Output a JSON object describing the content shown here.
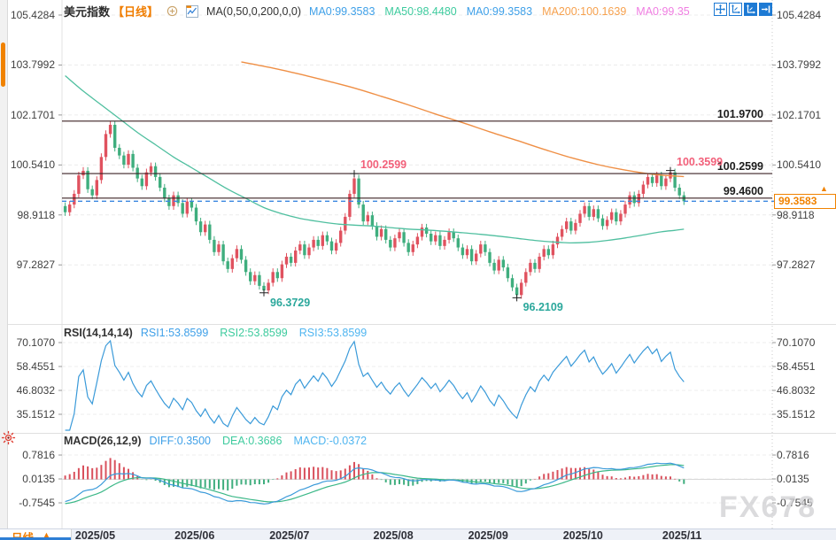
{
  "header": {
    "symbol": "美元指数",
    "period_tag": "【日线】",
    "ma_settings": "MA(0,50,0,200,0,0)",
    "ma_items": [
      {
        "label": "MA0:99.3583",
        "color": "#3fa0e8"
      },
      {
        "label": "MA50:98.4480",
        "color": "#3ecb9e"
      },
      {
        "label": "MA0:99.3583",
        "color": "#3fa0e8"
      },
      {
        "label": "MA200:100.1639",
        "color": "#f6a14e"
      },
      {
        "label": "MA0:99.35",
        "color": "#f07ee2"
      }
    ]
  },
  "toolbar": {
    "icons": [
      {
        "name": "pan-crosshair-icon",
        "active": false
      },
      {
        "name": "axis-scale-icon",
        "active": false
      },
      {
        "name": "axis-scale-active-icon",
        "active": true
      },
      {
        "name": "collapse-right-icon",
        "active": true
      }
    ]
  },
  "main_pane": {
    "ticks": [
      "105.4284",
      "103.7992",
      "102.1701",
      "100.5410",
      "98.9118",
      "97.2827"
    ],
    "levels": [
      {
        "label": "101.9700",
        "value": 101.97
      },
      {
        "label": "100.2599",
        "value": 100.2599
      },
      {
        "label": "99.4600",
        "value": 99.46
      }
    ],
    "price_marker": {
      "label": "99.3583",
      "value": 99.3583,
      "arrow": "▲"
    },
    "annotations": [
      {
        "text": "100.2599",
        "value": 100.2599,
        "index": 64,
        "placement": "above",
        "color": "#f2607a"
      },
      {
        "text": "100.3599",
        "value": 100.3599,
        "index": 134,
        "placement": "above",
        "color": "#f2607a"
      },
      {
        "text": "96.3729",
        "value": 96.3729,
        "index": 44,
        "placement": "below",
        "color": "#2aa79b"
      },
      {
        "text": "96.2109",
        "value": 96.2109,
        "index": 100,
        "placement": "below",
        "color": "#2aa79b"
      }
    ]
  },
  "rsi_pane": {
    "title": "RSI(14,14,14)",
    "items": [
      {
        "label": "RSI1:53.8599",
        "color": "#3fa0e8"
      },
      {
        "label": "RSI2:53.8599",
        "color": "#3ecb9e"
      },
      {
        "label": "RSI3:53.8599",
        "color": "#4fb5f0"
      }
    ],
    "ticks": [
      "70.1070",
      "58.4551",
      "46.8032",
      "35.1512"
    ]
  },
  "macd_pane": {
    "title": "MACD(26,12,9)",
    "items": [
      {
        "label": "DIFF:0.3500",
        "color": "#3fa0e8"
      },
      {
        "label": "DEA:0.3686",
        "color": "#3ecb9e"
      },
      {
        "label": "MACD:-0.0372",
        "color": "#4fb5f0"
      }
    ],
    "ticks": [
      "0.7816",
      "0.0135",
      "-0.7545"
    ]
  },
  "bottom_bar": {
    "period_label": "日线",
    "period_arrow": "▲",
    "months": [
      {
        "label": "2025/05",
        "index": 3
      },
      {
        "label": "2025/06",
        "index": 25
      },
      {
        "label": "2025/07",
        "index": 46
      },
      {
        "label": "2025/08",
        "index": 69
      },
      {
        "label": "2025/09",
        "index": 90
      },
      {
        "label": "2025/10",
        "index": 111
      },
      {
        "label": "2025/11",
        "index": 133
      }
    ]
  },
  "watermark": "FX678",
  "colors": {
    "up": "#e0525f",
    "down": "#3fae7e",
    "ma50": "#4fbf9f",
    "ma200": "#ef8f45",
    "level_line": "#3b2024",
    "price_line": "#3b87e0",
    "accent_blue": "#1d7ad4",
    "orange": "#f08200",
    "rsi_line": "#3a9ad9",
    "diff_line": "#3a9ad9",
    "dea_line": "#3cb888",
    "hist_pos": "#d9505c",
    "hist_neg": "#3fae7e",
    "grid": "#ececec",
    "axis_text": "#3f3f3f"
  },
  "chart_data": {
    "type": "candlestick",
    "title": "美元指数 日线 (US Dollar Index, daily)",
    "ylim": [
      95.53,
      105.63
    ],
    "ylabel": "",
    "xlabel": "",
    "legend_position": "top",
    "grid": true,
    "open_first": 99.2,
    "wick": 0.12,
    "closes": [
      99.0,
      99.25,
      99.6,
      100.2,
      100.35,
      99.75,
      99.55,
      100.05,
      100.8,
      101.55,
      101.85,
      101.1,
      100.85,
      100.55,
      100.9,
      100.45,
      100.1,
      99.85,
      100.3,
      100.5,
      100.15,
      99.8,
      99.45,
      99.2,
      99.55,
      99.3,
      98.95,
      99.35,
      99.15,
      98.7,
      98.35,
      98.6,
      98.1,
      97.7,
      97.95,
      97.4,
      97.15,
      97.5,
      97.8,
      97.45,
      97.05,
      96.75,
      96.95,
      96.6,
      96.45,
      96.7,
      97.05,
      96.85,
      97.3,
      97.55,
      97.35,
      97.75,
      97.95,
      97.6,
      97.85,
      98.1,
      97.9,
      98.25,
      98.05,
      97.75,
      98.0,
      98.4,
      98.85,
      99.6,
      100.1,
      99.25,
      98.7,
      98.9,
      98.55,
      98.2,
      98.45,
      98.1,
      97.85,
      98.15,
      98.35,
      98.0,
      97.7,
      97.95,
      98.2,
      98.5,
      98.3,
      98.05,
      98.25,
      97.9,
      98.1,
      98.35,
      98.15,
      97.85,
      97.6,
      97.8,
      97.4,
      97.65,
      97.95,
      97.7,
      97.35,
      97.1,
      97.45,
      97.2,
      96.85,
      96.55,
      96.3,
      96.7,
      97.05,
      97.35,
      97.15,
      97.55,
      97.8,
      97.6,
      97.95,
      98.2,
      98.45,
      98.7,
      98.4,
      98.65,
      98.95,
      99.2,
      98.85,
      99.1,
      98.8,
      98.55,
      98.75,
      99.0,
      98.7,
      98.95,
      99.25,
      99.55,
      99.3,
      99.6,
      99.9,
      100.15,
      99.95,
      100.2,
      99.85,
      100.1,
      100.3,
      99.8,
      99.55,
      99.3583
    ],
    "extremes": [
      {
        "index": 10,
        "high": 101.97
      },
      {
        "index": 44,
        "low": 96.3729
      },
      {
        "index": 64,
        "high": 100.2599
      },
      {
        "index": 100,
        "low": 96.2109
      },
      {
        "index": 134,
        "high": 100.3599
      }
    ],
    "warmup_closes": [
      103.5,
      103.45,
      103.4,
      103.42,
      103.38,
      103.35,
      103.3,
      103.32,
      103.25,
      103.1,
      102.9,
      102.7,
      102.5,
      102.3,
      102.1,
      101.9,
      101.7,
      101.5,
      101.3,
      101.1,
      100.9,
      100.7,
      100.5,
      100.3,
      100.1,
      99.95,
      99.8,
      99.7,
      99.6,
      99.5,
      99.45,
      99.4,
      99.35,
      99.3,
      99.28,
      99.25,
      99.2,
      99.15,
      99.1,
      99.05
    ],
    "ma50_points": [
      [
        0,
        103.45
      ],
      [
        4,
        102.95
      ],
      [
        8,
        102.5
      ],
      [
        12,
        102.05
      ],
      [
        16,
        101.6
      ],
      [
        20,
        101.2
      ],
      [
        24,
        100.8
      ],
      [
        28,
        100.45
      ],
      [
        32,
        100.1
      ],
      [
        36,
        99.75
      ],
      [
        40,
        99.45
      ],
      [
        44,
        99.15
      ],
      [
        48,
        98.95
      ],
      [
        52,
        98.8
      ],
      [
        56,
        98.7
      ],
      [
        60,
        98.62
      ],
      [
        64,
        98.58
      ],
      [
        68,
        98.55
      ],
      [
        72,
        98.5
      ],
      [
        76,
        98.45
      ],
      [
        80,
        98.42
      ],
      [
        84,
        98.38
      ],
      [
        88,
        98.33
      ],
      [
        92,
        98.28
      ],
      [
        96,
        98.22
      ],
      [
        100,
        98.15
      ],
      [
        104,
        98.08
      ],
      [
        108,
        98.03
      ],
      [
        112,
        98.0
      ],
      [
        116,
        98.02
      ],
      [
        120,
        98.08
      ],
      [
        124,
        98.16
      ],
      [
        128,
        98.26
      ],
      [
        132,
        98.36
      ],
      [
        135,
        98.41
      ],
      [
        137,
        98.448
      ]
    ],
    "ma200_points": [
      [
        39,
        103.9
      ],
      [
        46,
        103.7
      ],
      [
        52,
        103.5
      ],
      [
        58,
        103.28
      ],
      [
        64,
        103.05
      ],
      [
        70,
        102.78
      ],
      [
        76,
        102.5
      ],
      [
        82,
        102.2
      ],
      [
        88,
        101.92
      ],
      [
        94,
        101.62
      ],
      [
        100,
        101.34
      ],
      [
        106,
        101.05
      ],
      [
        112,
        100.78
      ],
      [
        118,
        100.55
      ],
      [
        123,
        100.4
      ],
      [
        128,
        100.28
      ],
      [
        132,
        100.21
      ],
      [
        137,
        100.164
      ]
    ],
    "indicators": {
      "ma_last": {
        "ma0": 99.3583,
        "ma50": 98.448,
        "ma200": 100.1639,
        "ma0_b": 99.35
      },
      "rsi": {
        "periods": [
          14,
          14,
          14
        ],
        "last": [
          53.8599,
          53.8599,
          53.8599
        ],
        "axis": [
          70.107,
          58.4551,
          46.8032,
          35.1512
        ]
      },
      "macd": {
        "params": [
          26,
          12,
          9
        ],
        "diff_last": 0.35,
        "dea_last": 0.3686,
        "hist_last": -0.0372,
        "axis": [
          0.7816,
          0.0135,
          -0.7545
        ]
      }
    }
  }
}
